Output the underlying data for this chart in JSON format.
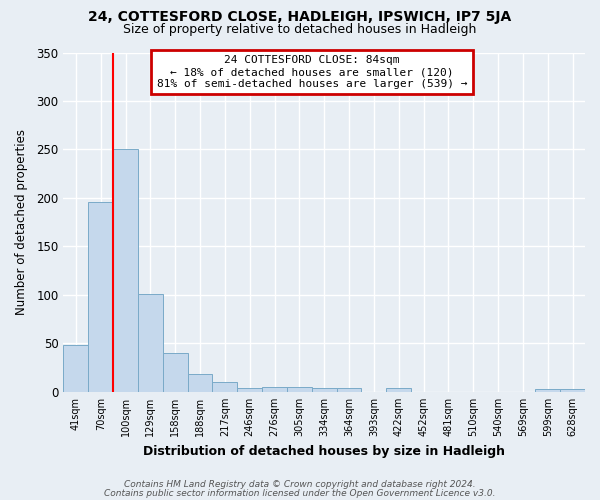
{
  "title1": "24, COTTESFORD CLOSE, HADLEIGH, IPSWICH, IP7 5JA",
  "title2": "Size of property relative to detached houses in Hadleigh",
  "xlabel": "Distribution of detached houses by size in Hadleigh",
  "ylabel": "Number of detached properties",
  "categories": [
    "41sqm",
    "70sqm",
    "100sqm",
    "129sqm",
    "158sqm",
    "188sqm",
    "217sqm",
    "246sqm",
    "276sqm",
    "305sqm",
    "334sqm",
    "364sqm",
    "393sqm",
    "422sqm",
    "452sqm",
    "481sqm",
    "510sqm",
    "540sqm",
    "569sqm",
    "599sqm",
    "628sqm"
  ],
  "values": [
    48,
    196,
    250,
    101,
    40,
    18,
    10,
    4,
    5,
    5,
    4,
    4,
    0,
    4,
    0,
    0,
    0,
    0,
    0,
    3,
    3
  ],
  "bar_color": "#c5d8ec",
  "bar_edge_color": "#7aaac8",
  "red_line_x": 1.5,
  "annotation_line1": "24 COTTESFORD CLOSE: 84sqm",
  "annotation_line2": "← 18% of detached houses are smaller (120)",
  "annotation_line3": "81% of semi-detached houses are larger (539) →",
  "annotation_box_color": "white",
  "annotation_box_edge_color": "#cc0000",
  "footer1": "Contains HM Land Registry data © Crown copyright and database right 2024.",
  "footer2": "Contains public sector information licensed under the Open Government Licence v3.0.",
  "ylim": [
    0,
    350
  ],
  "yticks": [
    0,
    50,
    100,
    150,
    200,
    250,
    300,
    350
  ],
  "background_color": "#e8eef4",
  "grid_color": "#ffffff",
  "title1_fontsize": 10,
  "title2_fontsize": 9
}
